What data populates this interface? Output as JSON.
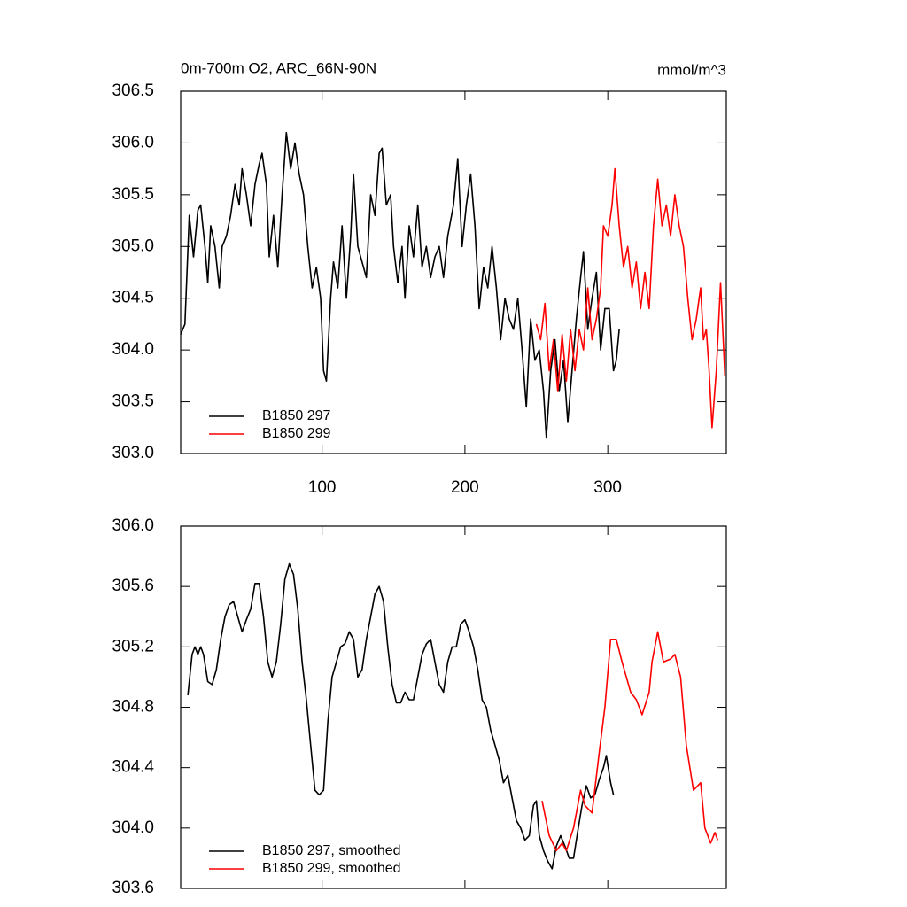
{
  "chart_data": [
    {
      "type": "line",
      "title": "0m-700m O2, ARC_66N-90N",
      "units": "mmol/m^3",
      "xlim": [
        1,
        383
      ],
      "xticks": [
        100,
        200,
        300
      ],
      "ylim": [
        303,
        306.5
      ],
      "yticks": [
        {
          "value": 303,
          "label": "303.0"
        },
        303.5,
        {
          "value": 304,
          "label": "304.0"
        },
        304.5,
        {
          "value": 305,
          "label": "305.0"
        },
        305.5,
        {
          "value": 306,
          "label": "306.0"
        },
        306.5
      ],
      "legend": "lower left",
      "series": [
        {
          "name": "B1850 297",
          "color": "#000000",
          "x": [
            1,
            4,
            7,
            10,
            13,
            15,
            18,
            20,
            22,
            25,
            28,
            30,
            33,
            36,
            39,
            42,
            44,
            47,
            50,
            53,
            56,
            58,
            61,
            63,
            66,
            69,
            72,
            75,
            78,
            81,
            84,
            87,
            90,
            93,
            96,
            99,
            101,
            103,
            106,
            108,
            111,
            114,
            117,
            120,
            122,
            125,
            128,
            131,
            134,
            137,
            140,
            142,
            145,
            148,
            150,
            153,
            156,
            158,
            161,
            164,
            167,
            170,
            173,
            176,
            179,
            182,
            185,
            188,
            192,
            195,
            198,
            201,
            204,
            207,
            210,
            213,
            216,
            219,
            222,
            225,
            228,
            231,
            234,
            237,
            240,
            243,
            246,
            249,
            252,
            255,
            257,
            260,
            263,
            266,
            269,
            272,
            275,
            278,
            281,
            283,
            286,
            289,
            292,
            295,
            298,
            301,
            304,
            306,
            308
          ],
          "values": [
            304.15,
            304.25,
            305.3,
            304.9,
            305.35,
            305.4,
            305.0,
            304.65,
            305.2,
            305.0,
            304.6,
            305.0,
            305.1,
            305.3,
            305.6,
            305.4,
            305.75,
            305.5,
            305.2,
            305.6,
            305.8,
            305.9,
            305.6,
            304.9,
            305.3,
            304.8,
            305.5,
            306.1,
            305.75,
            306.0,
            305.7,
            305.5,
            305.0,
            304.6,
            304.8,
            304.5,
            303.8,
            303.7,
            304.5,
            304.85,
            304.6,
            305.2,
            304.5,
            305.1,
            305.7,
            305.0,
            304.85,
            304.7,
            305.5,
            305.3,
            305.9,
            305.95,
            305.4,
            305.5,
            305.0,
            304.65,
            305.0,
            304.5,
            305.2,
            304.9,
            305.4,
            304.8,
            305.0,
            304.7,
            304.9,
            305.0,
            304.7,
            305.1,
            305.4,
            305.85,
            305.0,
            305.4,
            305.7,
            305.2,
            304.4,
            304.8,
            304.6,
            305.0,
            304.6,
            304.1,
            304.5,
            304.3,
            304.2,
            304.5,
            304.0,
            303.45,
            304.3,
            303.9,
            304.0,
            303.6,
            303.15,
            303.8,
            304.1,
            303.6,
            303.9,
            303.3,
            303.8,
            304.3,
            304.7,
            304.95,
            304.2,
            304.5,
            304.75,
            304.0,
            304.4,
            304.4,
            303.8,
            303.9,
            304.2
          ]
        },
        {
          "name": "B1850 299",
          "color": "#ff0000",
          "x": [
            250,
            253,
            256,
            259,
            262,
            265,
            268,
            271,
            274,
            277,
            280,
            283,
            286,
            289,
            292,
            295,
            297,
            300,
            303,
            305,
            308,
            311,
            314,
            317,
            320,
            323,
            326,
            329,
            332,
            335,
            338,
            341,
            344,
            347,
            350,
            353,
            356,
            359,
            362,
            365,
            367,
            369,
            371,
            373,
            376,
            379,
            382
          ],
          "values": [
            304.25,
            304.1,
            304.45,
            303.8,
            304.1,
            303.6,
            304.15,
            303.7,
            304.2,
            303.8,
            304.2,
            304.0,
            304.6,
            304.1,
            304.3,
            304.6,
            305.2,
            305.1,
            305.4,
            305.75,
            305.2,
            304.8,
            305.0,
            304.6,
            304.85,
            304.4,
            304.75,
            304.4,
            305.2,
            305.65,
            305.2,
            305.4,
            305.1,
            305.5,
            305.2,
            305.0,
            304.5,
            304.1,
            304.3,
            304.6,
            304.1,
            304.2,
            303.8,
            303.25,
            303.8,
            304.65,
            303.75
          ]
        }
      ]
    },
    {
      "type": "line",
      "xlim": [
        1,
        383
      ],
      "ylim": [
        303.6,
        306
      ],
      "yticks": [
        303.6,
        {
          "value": 304,
          "label": "304.0"
        },
        304.4,
        304.8,
        305.2,
        305.6,
        {
          "value": 306,
          "label": "306.0"
        }
      ],
      "legend": "lower left",
      "series": [
        {
          "name": "B1850 297, smoothed",
          "color": "#000000",
          "x": [
            6,
            9,
            11,
            13,
            15,
            17,
            20,
            23,
            26,
            29,
            32,
            35,
            38,
            41,
            44,
            47,
            50,
            53,
            56,
            59,
            62,
            65,
            68,
            71,
            74,
            77,
            80,
            83,
            86,
            89,
            92,
            95,
            98,
            101,
            104,
            107,
            110,
            113,
            116,
            119,
            122,
            125,
            128,
            131,
            134,
            137,
            140,
            143,
            146,
            149,
            152,
            155,
            158,
            161,
            164,
            167,
            170,
            173,
            176,
            179,
            182,
            185,
            188,
            191,
            194,
            197,
            200,
            203,
            206,
            209,
            212,
            215,
            218,
            221,
            224,
            227,
            230,
            233,
            236,
            239,
            242,
            245,
            248,
            250,
            252,
            255,
            258,
            261,
            264,
            267,
            270,
            273,
            276,
            279,
            282,
            285,
            288,
            291,
            294,
            297,
            299,
            302,
            304
          ],
          "values": [
            304.88,
            305.15,
            305.2,
            305.15,
            305.2,
            305.15,
            304.97,
            304.95,
            305.05,
            305.25,
            305.4,
            305.48,
            305.5,
            305.4,
            305.3,
            305.38,
            305.45,
            305.62,
            305.62,
            305.4,
            305.1,
            305.0,
            305.1,
            305.35,
            305.65,
            305.75,
            305.68,
            305.45,
            305.1,
            304.85,
            304.55,
            304.25,
            304.22,
            304.25,
            304.7,
            305.0,
            305.1,
            305.2,
            305.22,
            305.3,
            305.25,
            305.0,
            305.05,
            305.25,
            305.4,
            305.55,
            305.6,
            305.5,
            305.2,
            304.95,
            304.83,
            304.83,
            304.9,
            304.85,
            304.85,
            305.0,
            305.15,
            305.22,
            305.25,
            305.1,
            304.95,
            304.9,
            305.1,
            305.2,
            305.2,
            305.35,
            305.38,
            305.3,
            305.2,
            305.05,
            304.85,
            304.8,
            304.65,
            304.55,
            304.45,
            304.3,
            304.35,
            304.2,
            304.05,
            304.0,
            303.92,
            303.95,
            304.15,
            304.18,
            303.95,
            303.85,
            303.78,
            303.73,
            303.88,
            303.95,
            303.88,
            303.8,
            303.8,
            303.98,
            304.15,
            304.28,
            304.2,
            304.22,
            304.32,
            304.4,
            304.48,
            304.3,
            304.22
          ]
        },
        {
          "name": "B1850 299, smoothed",
          "color": "#ff0000",
          "x": [
            254,
            259,
            264,
            268,
            271,
            276,
            281,
            284,
            289,
            294,
            298,
            302,
            306,
            310,
            316,
            320,
            324,
            329,
            331,
            335,
            339,
            344,
            347,
            351,
            355,
            360,
            365,
            368,
            372,
            375,
            377
          ],
          "values": [
            304.18,
            303.95,
            303.85,
            303.9,
            303.85,
            304.0,
            304.25,
            304.15,
            304.1,
            304.5,
            304.8,
            305.25,
            305.25,
            305.1,
            304.9,
            304.85,
            304.75,
            304.9,
            305.1,
            305.3,
            305.1,
            305.12,
            305.15,
            305.0,
            304.55,
            304.25,
            304.3,
            304.0,
            303.9,
            303.97,
            303.92
          ]
        }
      ]
    }
  ]
}
